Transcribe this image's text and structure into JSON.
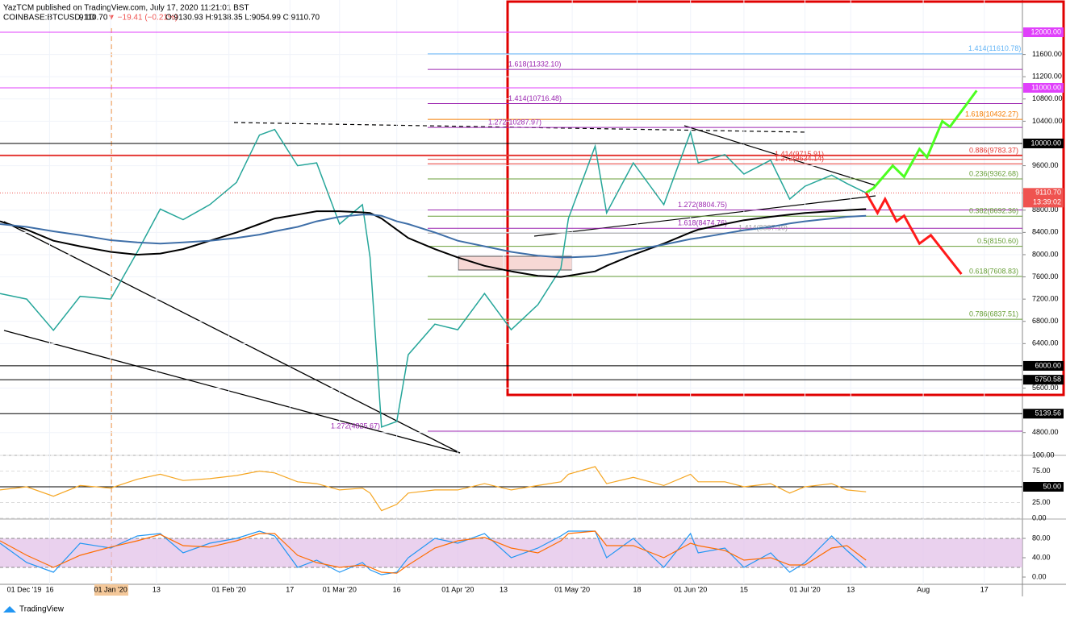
{
  "header": {
    "publisher": "YazTCM published on TradingView.com, July 17, 2020 11:21:01 BST",
    "symbol": "COINBASE:BTCUSD, 1D",
    "last": "9110.70",
    "change": "▼ −19.41 (−0.21%)",
    "ohlc": "O:9130.93 H:9138.35 L:9054.99 C:9110.70"
  },
  "footer": "TradingView",
  "chart_data": {
    "type": "line",
    "x": [
      "2019-12-03",
      "2019-12-10",
      "2019-12-17",
      "2019-12-24",
      "2020-01-01",
      "2020-01-08",
      "2020-01-14",
      "2020-01-20",
      "2020-01-27",
      "2020-02-03",
      "2020-02-09",
      "2020-02-13",
      "2020-02-19",
      "2020-02-24",
      "2020-03-01",
      "2020-03-07",
      "2020-03-09",
      "2020-03-12",
      "2020-03-16",
      "2020-03-19",
      "2020-03-26",
      "2020-04-01",
      "2020-04-08",
      "2020-04-15",
      "2020-04-22",
      "2020-04-28",
      "2020-04-30",
      "2020-05-07",
      "2020-05-10",
      "2020-05-17",
      "2020-05-25",
      "2020-06-01",
      "2020-06-03",
      "2020-06-10",
      "2020-06-15",
      "2020-06-22",
      "2020-06-27",
      "2020-07-01",
      "2020-07-08",
      "2020-07-12",
      "2020-07-17"
    ],
    "series": [
      {
        "color": "#26a69a",
        "values": [
          7300,
          7200,
          6640,
          7250,
          7200,
          8050,
          8820,
          8630,
          8900,
          9300,
          10150,
          10250,
          9600,
          9650,
          8550,
          8900,
          7950,
          4900,
          5000,
          6200,
          6750,
          6650,
          7300,
          6650,
          7100,
          7750,
          8650,
          9950,
          8750,
          9650,
          8900,
          10200,
          9650,
          9800,
          9450,
          9700,
          9000,
          9230,
          9430,
          9280,
          9110.7
        ]
      },
      {
        "color": "#000000",
        "values": [
          8600,
          8450,
          8250,
          8150,
          8050,
          8000,
          8020,
          8100,
          8250,
          8400,
          8550,
          8650,
          8720,
          8780,
          8780,
          8760,
          8750,
          8650,
          8450,
          8300,
          8100,
          7950,
          7800,
          7700,
          7620,
          7600,
          7620,
          7700,
          7800,
          8000,
          8200,
          8400,
          8450,
          8550,
          8620,
          8680,
          8720,
          8750,
          8780,
          8800,
          8820
        ]
      },
      {
        "color": "#3f6fa8",
        "values": [
          8550,
          8500,
          8420,
          8350,
          8260,
          8220,
          8200,
          8220,
          8250,
          8300,
          8360,
          8420,
          8500,
          8600,
          8680,
          8720,
          8720,
          8700,
          8600,
          8550,
          8400,
          8250,
          8150,
          8050,
          7980,
          7950,
          7950,
          7970,
          8000,
          8080,
          8180,
          8280,
          8300,
          8380,
          8440,
          8500,
          8560,
          8600,
          8650,
          8680,
          8700
        ]
      }
    ],
    "xlim": [
      "2019-12-03",
      "2020-08-27"
    ],
    "xticks": [
      {
        "value": "2019-12-01",
        "label": "01 Dec '19"
      },
      {
        "value": "2019-12-16",
        "label": "16"
      },
      {
        "value": "2020-01-01",
        "label": "01 Jan '20"
      },
      {
        "value": "2020-01-13",
        "label": "13"
      },
      {
        "value": "2020-02-01",
        "label": "01 Feb '20"
      },
      {
        "value": "2020-02-17",
        "label": "17"
      },
      {
        "value": "2020-03-01",
        "label": "01 Mar '20"
      },
      {
        "value": "2020-03-16",
        "label": "16"
      },
      {
        "value": "2020-04-01",
        "label": "01 Apr '20"
      },
      {
        "value": "2020-04-13",
        "label": "13"
      },
      {
        "value": "2020-05-01",
        "label": "01 May '20"
      },
      {
        "value": "2020-05-18",
        "label": "18"
      },
      {
        "value": "2020-06-01",
        "label": "01 Jun '20"
      },
      {
        "value": "2020-06-15",
        "label": "15"
      },
      {
        "value": "2020-07-01",
        "label": "01 Jul '20"
      },
      {
        "value": "2020-07-13",
        "label": "13"
      },
      {
        "value": "2020-08-01",
        "label": "Aug"
      },
      {
        "value": "2020-08-17",
        "label": "17"
      }
    ],
    "ylim": [
      4390,
      12580
    ],
    "yticks": [
      {
        "value": 11600,
        "label": "11600.00"
      },
      {
        "value": 11200,
        "label": "11200.00"
      },
      {
        "value": 10800,
        "label": "10800.00"
      },
      {
        "value": 10400,
        "label": "10400.00"
      },
      {
        "value": 9600,
        "label": "9600.00"
      },
      {
        "value": 8800,
        "label": "8800.00"
      },
      {
        "value": 8400,
        "label": "8400.00"
      },
      {
        "value": 8000,
        "label": "8000.00"
      },
      {
        "value": 7600,
        "label": "7600.00"
      },
      {
        "value": 7200,
        "label": "7200.00"
      },
      {
        "value": 6800,
        "label": "6800.00"
      },
      {
        "value": 6400,
        "label": "6400.00"
      },
      {
        "value": 5600,
        "label": "5600.00"
      },
      {
        "value": 4800,
        "label": "4800.00"
      }
    ],
    "levels": [
      {
        "value": 12000,
        "label": "12000.00",
        "color": "#e040fb"
      },
      {
        "value": 11000,
        "label": "11000.00",
        "color": "#e040fb"
      },
      {
        "value": 10000,
        "label": "10000.00",
        "color": "#000000"
      },
      {
        "value": 6000,
        "label": "6000.00",
        "color": "#000000"
      },
      {
        "value": 5750.58,
        "label": "5750.58",
        "color": "#000000"
      },
      {
        "value": 5139.56,
        "label": "5139.56",
        "color": "#000000"
      }
    ],
    "last_price": {
      "value": 9110.7,
      "label": "9110.70",
      "countdown": "13:39:02",
      "color": "#ef5350"
    },
    "fibs": [
      {
        "value": 11610.78,
        "label": "1.414(11610.78)",
        "color": "#64b5f6"
      },
      {
        "value": 11332.1,
        "label": "1.618(11332.10)",
        "color": "#9c27b0"
      },
      {
        "value": 10716.48,
        "label": "1.414(10716.48)",
        "color": "#9c27b0"
      },
      {
        "value": 10432.27,
        "label": "1.618(10432.27)",
        "color": "#f57c00"
      },
      {
        "value": 10287.97,
        "label": "1.272(10287.97)",
        "color": "#9c27b0"
      },
      {
        "value": 9783.37,
        "label": "0.886(9783.37)",
        "color": "#e53935"
      },
      {
        "value": 9715.91,
        "label": "1.414(9715.91)",
        "color": "#e53935"
      },
      {
        "value": 9634.14,
        "label": "1.272(9634.14)",
        "color": "#e53935"
      },
      {
        "value": 9362.68,
        "label": "0.236(9362.68)",
        "color": "#689f38"
      },
      {
        "value": 8804.75,
        "label": "1.272(8804.75)",
        "color": "#9c27b0"
      },
      {
        "value": 8692.36,
        "label": "0.382(8692.36)",
        "color": "#689f38"
      },
      {
        "value": 8474.76,
        "label": "1.618(8474.76)",
        "color": "#9c27b0"
      },
      {
        "value": 8387.1,
        "label": "1.414(8387.10)",
        "color": "#9e9e9e"
      },
      {
        "value": 8150.6,
        "label": "0.5(8150.60)",
        "color": "#689f38"
      },
      {
        "value": 7608.83,
        "label": "0.618(7608.83)",
        "color": "#689f38"
      },
      {
        "value": 6837.51,
        "label": "0.786(6837.51)",
        "color": "#689f38"
      },
      {
        "value": 4825.67,
        "label": "1.272(4825.67)",
        "color": "#9c27b0"
      }
    ],
    "projections": [
      {
        "color": "#4cff20",
        "x": [
          "2020-07-17",
          "2020-07-19",
          "2020-07-24",
          "2020-07-27",
          "2020-07-31",
          "2020-08-02",
          "2020-08-06",
          "2020-08-08",
          "2020-08-15"
        ],
        "values": [
          9110.7,
          9200,
          9600,
          9400,
          9900,
          9750,
          10400,
          10300,
          10950
        ]
      },
      {
        "color": "#ff1a1a",
        "x": [
          "2020-07-17",
          "2020-07-20",
          "2020-07-22",
          "2020-07-25",
          "2020-07-27",
          "2020-07-31",
          "2020-08-03",
          "2020-08-11"
        ],
        "values": [
          9110.7,
          8750,
          9000,
          8600,
          8700,
          8200,
          8350,
          7650
        ]
      }
    ],
    "rsi": {
      "color": "#f5a623",
      "ylim": [
        0,
        100
      ],
      "yticks": [
        {
          "value": 100,
          "label": "100.00"
        },
        {
          "value": 75,
          "label": "75.00"
        },
        {
          "value": 50,
          "label": "50.00"
        },
        {
          "value": 25,
          "label": "25.00"
        },
        {
          "value": 0,
          "label": "0.00"
        }
      ],
      "values": [
        45,
        50,
        35,
        52,
        48,
        62,
        70,
        60,
        63,
        68,
        75,
        72,
        58,
        55,
        45,
        48,
        40,
        12,
        22,
        40,
        45,
        45,
        55,
        45,
        52,
        58,
        70,
        82,
        55,
        65,
        52,
        70,
        58,
        58,
        50,
        55,
        40,
        50,
        55,
        45,
        42
      ]
    },
    "stoch": {
      "ylim": [
        0,
        100
      ],
      "band": [
        20,
        80
      ],
      "yticks": [
        {
          "value": 80,
          "label": "80.00"
        },
        {
          "value": 40,
          "label": "40.00"
        },
        {
          "value": 0,
          "label": "0.00"
        }
      ],
      "series": [
        {
          "color": "#2196f3",
          "values": [
            70,
            30,
            10,
            70,
            60,
            85,
            90,
            50,
            70,
            80,
            95,
            85,
            20,
            35,
            10,
            30,
            15,
            5,
            10,
            40,
            80,
            70,
            90,
            40,
            60,
            85,
            95,
            95,
            40,
            80,
            20,
            90,
            50,
            60,
            20,
            50,
            10,
            30,
            85,
            55,
            20
          ]
        },
        {
          "color": "#ff6d00",
          "values": [
            75,
            45,
            20,
            45,
            62,
            75,
            88,
            65,
            62,
            75,
            90,
            90,
            45,
            30,
            20,
            25,
            20,
            10,
            8,
            25,
            60,
            75,
            82,
            60,
            50,
            75,
            90,
            95,
            65,
            65,
            40,
            70,
            65,
            55,
            35,
            40,
            25,
            25,
            60,
            65,
            35
          ]
        }
      ]
    }
  }
}
